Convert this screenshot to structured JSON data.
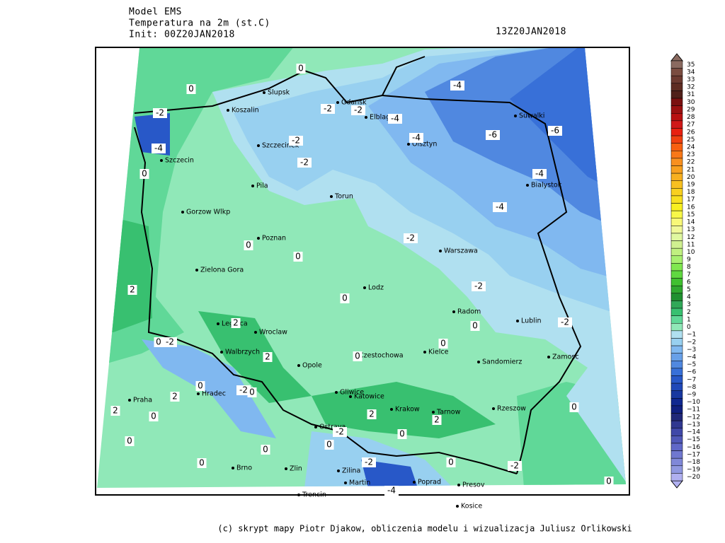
{
  "header": {
    "model": "Model EMS",
    "variable": "Temperatura na 2m (st.C)",
    "init": "Init: 00Z20JAN2018",
    "valid": "13Z20JAN2018"
  },
  "footer": "(c) skrypt mapy Piotr Djakow, obliczenia modelu i wizualizacja Juliusz Orlikowski",
  "cities": [
    "Slupsk",
    "Koszalin",
    "Gdansk",
    "Elblag",
    "Olsztyn",
    "Suwalki",
    "Szczecinek",
    "Szczecin",
    "Bialystok",
    "Pila",
    "Torun",
    "Gorzow Wlkp",
    "Poznan",
    "Warszawa",
    "Zielona Gora",
    "Lodz",
    "Radom",
    "Lublin",
    "Legnica",
    "Wroclaw",
    "Walbrzych",
    "Kielce",
    "Czestochowa",
    "Opole",
    "Zamosc",
    "Sandomierz",
    "Hradec",
    "Praha",
    "Gliwice",
    "Katowice",
    "Krakow",
    "Tarnow",
    "Rzeszow",
    "Ostrava",
    "Brno",
    "Zlin",
    "Zilina",
    "Martin",
    "Poprad",
    "Presov",
    "Trencin",
    "Kosice"
  ],
  "contour_labels": [
    "0",
    "0",
    "-2",
    "-2",
    "-2",
    "-4",
    "-4",
    "-6",
    "-6",
    "-4",
    "-2",
    "-2",
    "-4",
    "0",
    "-4",
    "-4",
    "-2",
    "0",
    "0",
    "2",
    "0",
    "-2",
    "-2",
    "0",
    "0",
    "2",
    "0",
    "-2",
    "2",
    "0",
    "-2",
    "0",
    "2",
    "2",
    "0",
    "0",
    "2",
    "2",
    "0",
    "-2",
    "0",
    "0",
    "0",
    "0",
    "-2",
    "0",
    "-2",
    "0",
    "0",
    "-4"
  ],
  "legend": {
    "labels": [
      "35",
      "34",
      "33",
      "32",
      "31",
      "30",
      "29",
      "28",
      "27",
      "26",
      "25",
      "24",
      "23",
      "22",
      "21",
      "20",
      "19",
      "18",
      "17",
      "16",
      "15",
      "14",
      "13",
      "12",
      "11",
      "10",
      "9",
      "8",
      "7",
      "6",
      "5",
      "4",
      "3",
      "2",
      "1",
      "0",
      "−1",
      "−2",
      "−3",
      "−4",
      "−5",
      "−6",
      "−7",
      "−8",
      "−9",
      "−10",
      "−11",
      "−12",
      "−13",
      "−14",
      "−15",
      "−16",
      "−17",
      "−18",
      "−19",
      "−20"
    ],
    "colors": [
      "#8a6a60",
      "#7a4c40",
      "#6c3a30",
      "#5e2c22",
      "#50201a",
      "#7a1010",
      "#9a1010",
      "#b81010",
      "#d01818",
      "#e82010",
      "#f04010",
      "#f86010",
      "#f87818",
      "#f89020",
      "#f8a020",
      "#f8b020",
      "#f8c020",
      "#f8d020",
      "#f8e020",
      "#f8f020",
      "#f8f848",
      "#f8f878",
      "#f0f898",
      "#e0f8a0",
      "#d0f090",
      "#c0f080",
      "#a8f070",
      "#80e850",
      "#60d840",
      "#40c030",
      "#30a830",
      "#209030",
      "#30a858",
      "#38c070",
      "#60d898",
      "#90e8b8",
      "#b0e0f0",
      "#98d0f0",
      "#80b8f0",
      "#68a0e8",
      "#5088e0",
      "#3870d8",
      "#2858c8",
      "#2048b8",
      "#1838a0",
      "#102890",
      "#102080",
      "#202878",
      "#303890",
      "#4048a8",
      "#5058b8",
      "#6068c8",
      "#7078d0",
      "#8088d8",
      "#9098e0",
      "#b0b0f0"
    ]
  }
}
